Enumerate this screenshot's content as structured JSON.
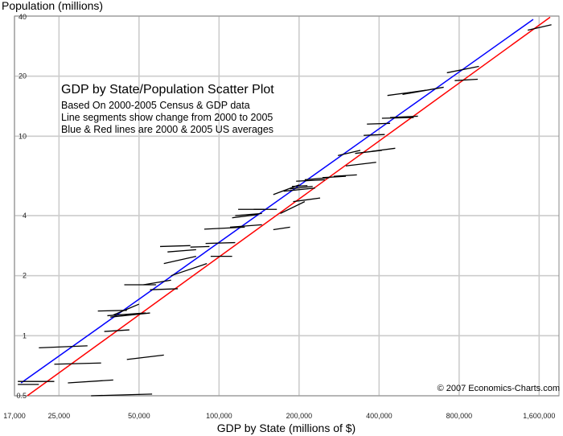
{
  "chart_data": {
    "type": "scatter",
    "title": "GDP by State/Population Scatter Plot",
    "subtitle_lines": [
      "Based On 2000-2005 Census & GDP data",
      "Line segments show change from 2000 to 2005",
      "Blue & Red lines are 2000 & 2005 US averages"
    ],
    "xlabel": "GDP by State (millions of $)",
    "ylabel": "Population (millions)",
    "x_scale": "log",
    "y_scale": "log",
    "xlim": [
      17000,
      1900000
    ],
    "ylim": [
      0.5,
      40
    ],
    "x_ticks": [
      {
        "value": 17000,
        "label": "17,000"
      },
      {
        "value": 25000,
        "label": "25,000"
      },
      {
        "value": 50000,
        "label": "50,000"
      },
      {
        "value": 100000,
        "label": "100,000"
      },
      {
        "value": 200000,
        "label": "200,000"
      },
      {
        "value": 400000,
        "label": "400,000"
      },
      {
        "value": 800000,
        "label": "800,000"
      },
      {
        "value": 1600000,
        "label": "1,600,000"
      }
    ],
    "y_ticks": [
      {
        "value": 0.5,
        "label": "0.5"
      },
      {
        "value": 1,
        "label": "1"
      },
      {
        "value": 2,
        "label": "2"
      },
      {
        "value": 4,
        "label": "4"
      },
      {
        "value": 10,
        "label": "10"
      },
      {
        "value": 20,
        "label": "20"
      },
      {
        "value": 40,
        "label": "40"
      }
    ],
    "grid": true,
    "credit": "© 2007 Economics-Charts.com",
    "average_lines": [
      {
        "year": 2000,
        "color": "#0000ff",
        "x": [
          18000,
          1520000
        ],
        "y": [
          0.58,
          38.5
        ]
      },
      {
        "year": 2005,
        "color": "#ff0000",
        "x": [
          19000,
          1760000
        ],
        "y": [
          0.5,
          39.5
        ]
      }
    ],
    "state_segments": [
      {
        "x": [
          33000,
          56000
        ],
        "y": [
          0.5,
          0.51
        ]
      },
      {
        "x": [
          17500,
          24000
        ],
        "y": [
          0.59,
          0.59
        ]
      },
      {
        "x": [
          17500,
          21000
        ],
        "y": [
          0.57,
          0.57
        ]
      },
      {
        "x": [
          27000,
          40000
        ],
        "y": [
          0.58,
          0.6
        ]
      },
      {
        "x": [
          24000,
          36000
        ],
        "y": [
          0.72,
          0.73
        ]
      },
      {
        "x": [
          45000,
          62000
        ],
        "y": [
          0.76,
          0.8
        ]
      },
      {
        "x": [
          21000,
          32000
        ],
        "y": [
          0.87,
          0.89
        ]
      },
      {
        "x": [
          37000,
          46000
        ],
        "y": [
          1.05,
          1.07
        ]
      },
      {
        "x": [
          38000,
          53000
        ],
        "y": [
          1.26,
          1.3
        ]
      },
      {
        "x": [
          39000,
          55000
        ],
        "y": [
          1.24,
          1.3
        ]
      },
      {
        "x": [
          40000,
          50000
        ],
        "y": [
          1.27,
          1.44
        ]
      },
      {
        "x": [
          35000,
          45000
        ],
        "y": [
          1.33,
          1.34
        ]
      },
      {
        "x": [
          44000,
          58000
        ],
        "y": [
          1.8,
          1.8
        ]
      },
      {
        "x": [
          52000,
          66000
        ],
        "y": [
          1.8,
          1.9
        ]
      },
      {
        "x": [
          55000,
          70000
        ],
        "y": [
          1.7,
          1.72
        ]
      },
      {
        "x": [
          66000,
          90000
        ],
        "y": [
          2.0,
          2.3
        ]
      },
      {
        "x": [
          62000,
          82000
        ],
        "y": [
          2.3,
          2.5
        ]
      },
      {
        "x": [
          93000,
          112000
        ],
        "y": [
          2.5,
          2.5
        ]
      },
      {
        "x": [
          64000,
          82000
        ],
        "y": [
          2.63,
          2.7
        ]
      },
      {
        "x": [
          60000,
          78000
        ],
        "y": [
          2.8,
          2.83
        ]
      },
      {
        "x": [
          78000,
          92000
        ],
        "y": [
          2.78,
          2.8
        ]
      },
      {
        "x": [
          89000,
          115000
        ],
        "y": [
          2.9,
          2.93
        ]
      },
      {
        "x": [
          88000,
          125000
        ],
        "y": [
          3.42,
          3.5
        ]
      },
      {
        "x": [
          110000,
          145000
        ],
        "y": [
          3.5,
          3.6
        ]
      },
      {
        "x": [
          160000,
          185000
        ],
        "y": [
          3.4,
          3.5
        ]
      },
      {
        "x": [
          112000,
          140000
        ],
        "y": [
          3.9,
          4.05
        ]
      },
      {
        "x": [
          115000,
          145000
        ],
        "y": [
          4.0,
          4.1
        ]
      },
      {
        "x": [
          118000,
          148000
        ],
        "y": [
          4.3,
          4.3
        ]
      },
      {
        "x": [
          135000,
          165000
        ],
        "y": [
          4.3,
          4.3
        ]
      },
      {
        "x": [
          170000,
          210000
        ],
        "y": [
          4.1,
          4.7
        ]
      },
      {
        "x": [
          190000,
          240000
        ],
        "y": [
          4.7,
          4.9
        ]
      },
      {
        "x": [
          160000,
          200000
        ],
        "y": [
          5.1,
          5.7
        ]
      },
      {
        "x": [
          175000,
          230000
        ],
        "y": [
          5.3,
          5.5
        ]
      },
      {
        "x": [
          185000,
          225000
        ],
        "y": [
          5.45,
          5.6
        ]
      },
      {
        "x": [
          188000,
          215000
        ],
        "y": [
          5.6,
          5.65
        ]
      },
      {
        "x": [
          195000,
          250000
        ],
        "y": [
          5.95,
          6.05
        ]
      },
      {
        "x": [
          210000,
          260000
        ],
        "y": [
          6.05,
          6.2
        ]
      },
      {
        "x": [
          270000,
          330000
        ],
        "y": [
          6.3,
          6.4
        ]
      },
      {
        "x": [
          245000,
          300000
        ],
        "y": [
          6.2,
          6.3
        ]
      },
      {
        "x": [
          300000,
          390000
        ],
        "y": [
          7.1,
          7.4
        ]
      },
      {
        "x": [
          280000,
          340000
        ],
        "y": [
          8.0,
          8.5
        ]
      },
      {
        "x": [
          325000,
          410000
        ],
        "y": [
          8.2,
          8.5
        ]
      },
      {
        "x": [
          375000,
          460000
        ],
        "y": [
          8.4,
          8.7
        ]
      },
      {
        "x": [
          350000,
          420000
        ],
        "y": [
          10.1,
          10.2
        ]
      },
      {
        "x": [
          360000,
          440000
        ],
        "y": [
          11.5,
          11.6
        ]
      },
      {
        "x": [
          410000,
          540000
        ],
        "y": [
          12.3,
          12.4
        ]
      },
      {
        "x": [
          440000,
          560000
        ],
        "y": [
          12.4,
          12.6
        ]
      },
      {
        "x": [
          430000,
          600000
        ],
        "y": [
          16.0,
          17.0
        ]
      },
      {
        "x": [
          490000,
          700000
        ],
        "y": [
          16.2,
          17.6
        ]
      },
      {
        "x": [
          770000,
          940000
        ],
        "y": [
          19.0,
          19.3
        ]
      },
      {
        "x": [
          720000,
          950000
        ],
        "y": [
          20.8,
          22.4
        ]
      },
      {
        "x": [
          1450000,
          1780000
        ],
        "y": [
          34.0,
          36.2
        ]
      }
    ]
  }
}
